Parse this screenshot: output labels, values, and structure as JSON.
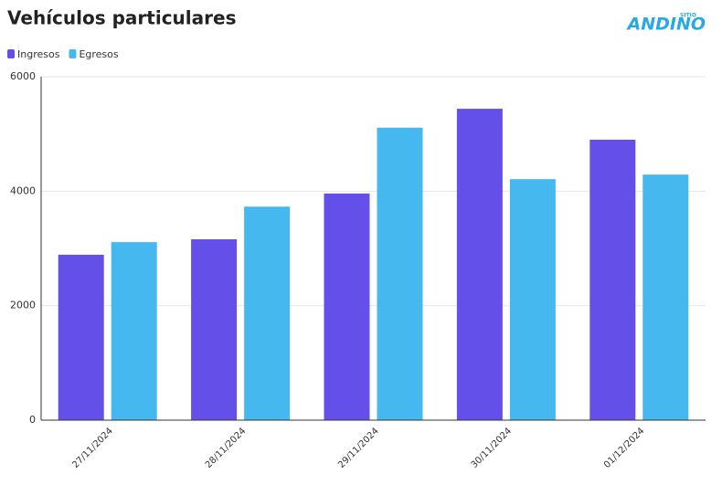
{
  "logo": {
    "top": "SITIO",
    "main": "ANDINO"
  },
  "chart_data": {
    "type": "bar",
    "title": "Vehículos particulares",
    "categories": [
      "27/11/2024",
      "28/11/2024",
      "29/11/2024",
      "30/11/2024",
      "01/12/2024"
    ],
    "series": [
      {
        "name": "Ingresos",
        "color": "#6450e8",
        "values": [
          2890,
          3160,
          3960,
          5440,
          4900
        ]
      },
      {
        "name": "Egresos",
        "color": "#46b8f0",
        "values": [
          3110,
          3730,
          5110,
          4210,
          4290
        ]
      }
    ],
    "ylim": [
      0,
      6000
    ],
    "yticks": [
      0,
      2000,
      4000,
      6000
    ],
    "grid": true,
    "legend": "top-left"
  }
}
